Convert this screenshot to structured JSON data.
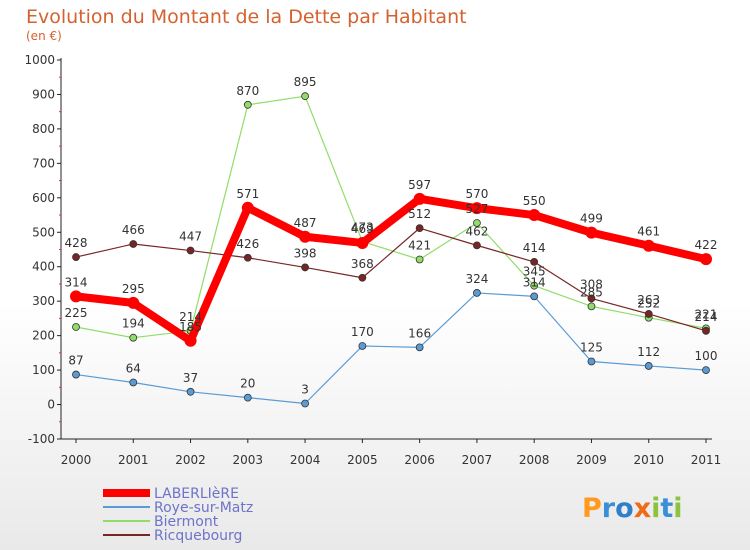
{
  "chart_data": {
    "type": "line",
    "title": "Evolution du Montant de la Dette par Habitant",
    "subtitle": "(en €)",
    "x": [
      "2000",
      "2001",
      "2002",
      "2003",
      "2004",
      "2005",
      "2006",
      "2007",
      "2008",
      "2009",
      "2010",
      "2011"
    ],
    "yticks": [
      "-100",
      "0",
      "100",
      "200",
      "300",
      "400",
      "500",
      "600",
      "700",
      "800",
      "900",
      "1000"
    ],
    "ylim": [
      -100,
      1000
    ],
    "grid": false,
    "legend_position": "bottom-left",
    "series": [
      {
        "name": "LABERLIèRE",
        "color": "#ff0000",
        "values": [
          314,
          295,
          185,
          571,
          487,
          469,
          597,
          570,
          550,
          499,
          461,
          422
        ],
        "labels": [
          "314",
          "295",
          "185",
          "571",
          "487",
          "469",
          "597",
          "570",
          "550",
          "499",
          "461",
          "422"
        ]
      },
      {
        "name": "Roye-sur-Matz",
        "color": "#5b9bd5",
        "values": [
          87,
          64,
          37,
          20,
          3,
          170,
          166,
          324,
          314,
          125,
          112,
          100
        ],
        "labels": [
          "87",
          "64",
          "37",
          "20",
          "3",
          "170",
          "166",
          "324",
          "314",
          "125",
          "112",
          "100"
        ]
      },
      {
        "name": "Biermont",
        "color": "#90dd6a",
        "values": [
          225,
          194,
          214,
          870,
          895,
          473,
          421,
          527,
          345,
          285,
          252,
          221
        ],
        "labels": [
          "225",
          "194",
          "214",
          "870",
          "895",
          "473",
          "421",
          "527",
          "345",
          "285",
          "252",
          "221"
        ]
      },
      {
        "name": "Ricquebourg",
        "color": "#7a2525",
        "values": [
          428,
          466,
          447,
          426,
          398,
          368,
          512,
          462,
          414,
          308,
          263,
          214
        ],
        "labels": [
          "428",
          "466",
          "447",
          "426",
          "398",
          "368",
          "512",
          "462",
          "414",
          "308",
          "263",
          "214"
        ]
      }
    ]
  },
  "logo": {
    "text": "Proxiti"
  }
}
